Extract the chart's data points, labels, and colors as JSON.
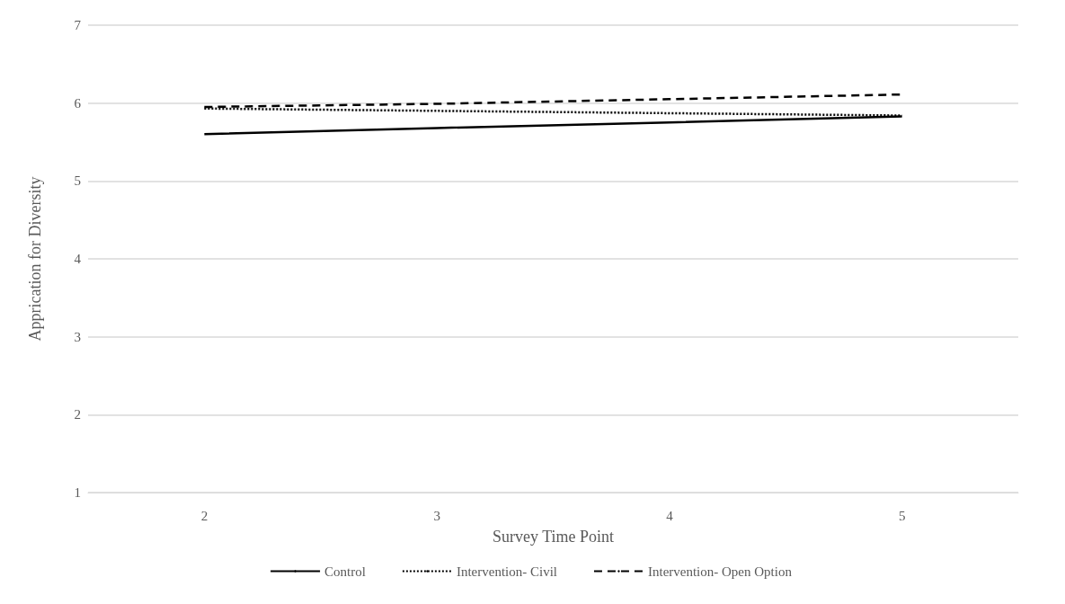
{
  "chart_data": {
    "type": "line",
    "xlabel": "Survey Time Point",
    "ylabel": "Apprication for Diversity",
    "categories": [
      "2",
      "3",
      "4",
      "5"
    ],
    "series": [
      {
        "name": "Control",
        "color": "#000000",
        "line_style": "solid",
        "values": [
          5.6,
          5.68,
          5.75,
          5.83
        ]
      },
      {
        "name": "Intervention- Civil",
        "color": "#000000",
        "line_style": "dotted",
        "values": [
          5.93,
          5.9,
          5.87,
          5.84
        ]
      },
      {
        "name": "Intervention- Open Option",
        "color": "#000000",
        "line_style": "dashed",
        "values": [
          5.95,
          5.99,
          6.05,
          6.11
        ]
      }
    ],
    "ylim": [
      1,
      7
    ],
    "yticks": [
      1,
      2,
      3,
      4,
      5,
      6,
      7
    ],
    "grid": "y",
    "legend": "bottom",
    "marker": "none"
  }
}
